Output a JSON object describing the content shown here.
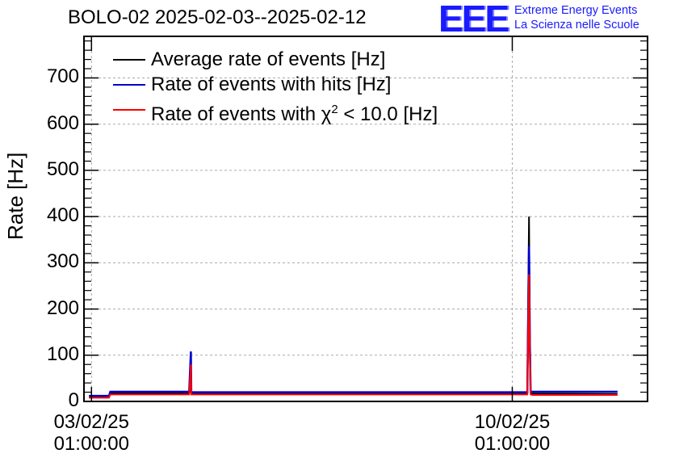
{
  "title": "BOLO-02 2025-02-03--2025-02-12",
  "logo": {
    "letters": "EEE",
    "line1": "Extreme Energy Events",
    "line2": "La Scienza nelle Scuole",
    "color": "#1a1aff"
  },
  "legend_items": [
    {
      "label": "Average rate of events [Hz]",
      "color": "#000000"
    },
    {
      "label": "Rate of events with hits [Hz]",
      "color": "#0000cc"
    },
    {
      "label_prefix": "Rate of events with χ",
      "label_sup": "2",
      "label_suffix": " < 10.0 [Hz]",
      "color": "#ff0000"
    }
  ],
  "chart_data": {
    "type": "line",
    "title": "BOLO-02 2025-02-03--2025-02-12",
    "ylabel": "Rate [Hz]",
    "xlabel": "",
    "ylim": [
      0,
      790
    ],
    "xlim": [
      "2025-02-02 22:00",
      "2025-02-12 07:00"
    ],
    "grid": true,
    "legend_position": "top-left",
    "x_ticks": [
      {
        "line1": "03/02/25",
        "line2": "01:00:00",
        "x": "2025-02-03 01:00"
      },
      {
        "line1": "10/02/25",
        "line2": "01:00:00",
        "x": "2025-02-10 01:00"
      }
    ],
    "y_ticks": [
      0,
      100,
      200,
      300,
      400,
      500,
      600,
      700
    ],
    "y_tick_labels": [
      "0",
      "100",
      "200",
      "300",
      "400",
      "500",
      "600",
      "700"
    ],
    "series": [
      {
        "name": "Average rate of events [Hz]",
        "color": "#000000",
        "x": [
          "2025-02-03 00:00",
          "2025-02-03 08:00",
          "2025-02-03 08:30",
          "2025-02-04 16:00",
          "2025-02-04 16:40",
          "2025-02-04 16:50",
          "2025-02-04 17:00",
          "2025-02-04 17:30",
          "2025-02-10 07:00",
          "2025-02-10 07:40",
          "2025-02-10 08:00",
          "2025-02-10 08:20",
          "2025-02-10 09:00",
          "2025-02-11 19:00"
        ],
        "y": [
          9,
          9,
          18,
          18,
          25,
          18,
          18,
          18,
          17,
          400,
          155,
          18,
          17,
          16
        ]
      },
      {
        "name": "Rate of events with hits [Hz]",
        "color": "#0000cc",
        "x": [
          "2025-02-03 00:00",
          "2025-02-03 08:00",
          "2025-02-03 08:30",
          "2025-02-04 16:00",
          "2025-02-04 16:40",
          "2025-02-04 16:50",
          "2025-02-04 17:00",
          "2025-02-04 17:30",
          "2025-02-10 07:00",
          "2025-02-10 07:40",
          "2025-02-10 08:00",
          "2025-02-10 08:20",
          "2025-02-10 09:00",
          "2025-02-11 19:00"
        ],
        "y": [
          12,
          12,
          21,
          21,
          108,
          21,
          20,
          20,
          20,
          336,
          130,
          21,
          21,
          21
        ]
      },
      {
        "name": "Rate of events with χ2 < 10.0 [Hz]",
        "color": "#ff0000",
        "x": [
          "2025-02-03 00:00",
          "2025-02-03 08:00",
          "2025-02-03 08:30",
          "2025-02-04 16:00",
          "2025-02-04 16:40",
          "2025-02-04 16:50",
          "2025-02-04 17:00",
          "2025-02-04 17:30",
          "2025-02-10 07:00",
          "2025-02-10 07:40",
          "2025-02-10 08:00",
          "2025-02-10 08:20",
          "2025-02-10 09:00",
          "2025-02-11 19:00"
        ],
        "y": [
          8,
          8,
          15,
          15,
          80,
          15,
          15,
          15,
          15,
          275,
          100,
          15,
          14,
          14
        ]
      }
    ]
  }
}
